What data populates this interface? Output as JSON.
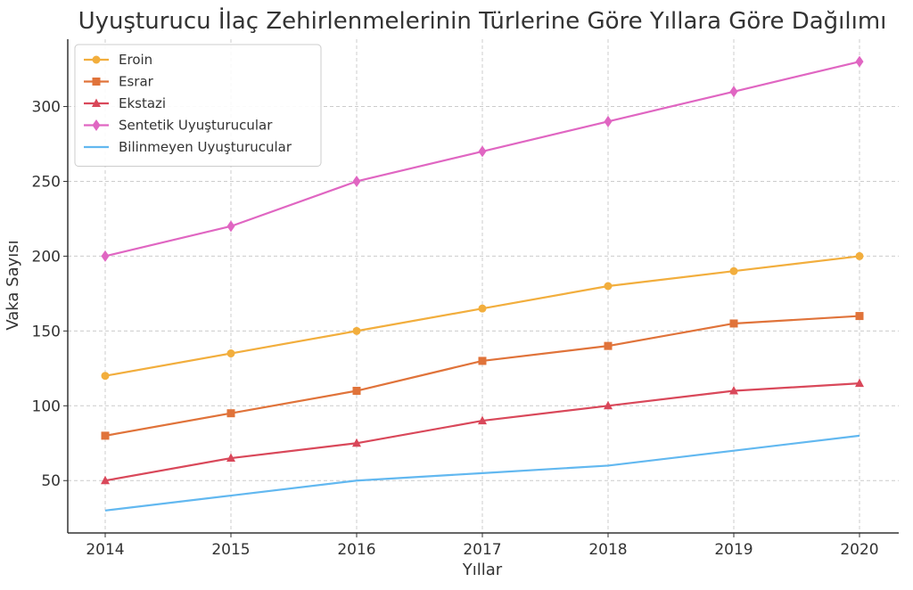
{
  "chart_data": {
    "type": "line",
    "title": "Uyuşturucu İlaç Zehirlenmelerinin Türlerine Göre Yıllara Göre Dağılımı",
    "xlabel": "Yıllar",
    "ylabel": "Vaka Sayısı",
    "x": [
      "2014",
      "2015",
      "2016",
      "2017",
      "2018",
      "2019",
      "2020"
    ],
    "ylim": [
      15,
      345
    ],
    "yticks": [
      50,
      100,
      150,
      200,
      250,
      300
    ],
    "grid": true,
    "legend_position": "top-left",
    "series": [
      {
        "name": "Eroin",
        "color": "#f2ae3d",
        "marker": "circle",
        "values": [
          120,
          135,
          150,
          165,
          180,
          190,
          200
        ]
      },
      {
        "name": "Esrar",
        "color": "#e0733a",
        "marker": "square",
        "values": [
          80,
          95,
          110,
          130,
          140,
          155,
          160
        ]
      },
      {
        "name": "Ekstazi",
        "color": "#d9485a",
        "marker": "triangle",
        "values": [
          50,
          65,
          75,
          90,
          100,
          110,
          115
        ]
      },
      {
        "name": "Sentetik Uyuşturucular",
        "color": "#e066c2",
        "marker": "diamond",
        "values": [
          200,
          220,
          250,
          270,
          290,
          310,
          330
        ]
      },
      {
        "name": "Bilinmeyen Uyuşturucular",
        "color": "#62b8f0",
        "marker": "none",
        "values": [
          30,
          40,
          50,
          55,
          60,
          70,
          80
        ]
      }
    ]
  }
}
